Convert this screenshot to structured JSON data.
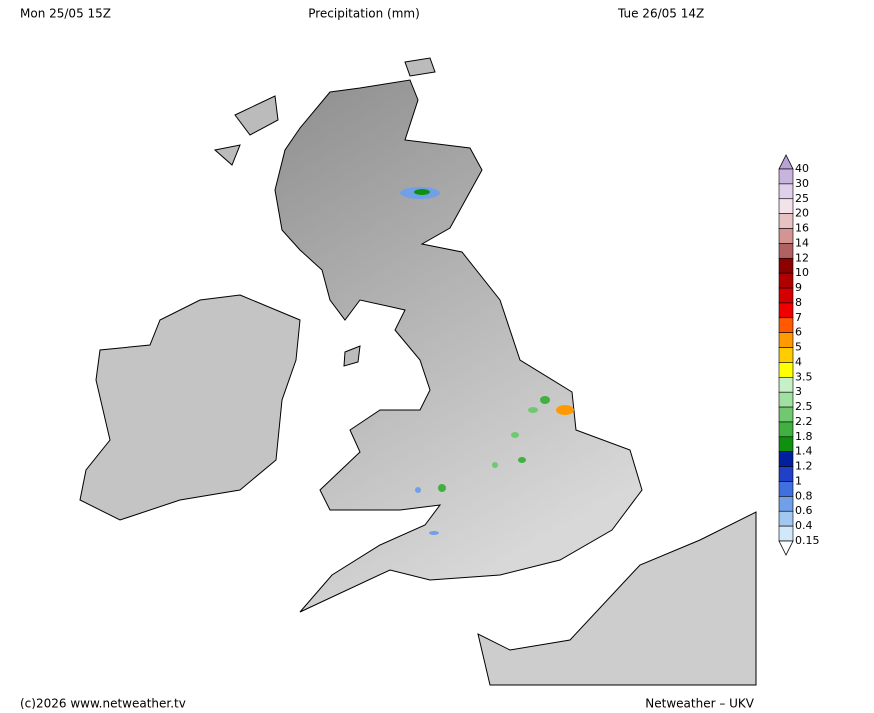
{
  "header": {
    "left": "Mon 25/05 15Z",
    "title": "Precipitation (mm)",
    "right": "Tue 26/05 14Z"
  },
  "footer": {
    "left": "(c)2026 www.netweather.tv",
    "right": "Netweather – UKV"
  },
  "legend": {
    "levels": [
      40,
      30,
      25,
      20,
      16,
      14,
      12,
      10,
      9,
      8,
      7,
      6,
      5,
      4,
      3.5,
      3,
      2.5,
      2.2,
      1.8,
      1.4,
      1.2,
      1,
      0.8,
      0.6,
      0.4,
      0.15
    ],
    "segment_colors": [
      "#c8b4dc",
      "#e0d0ea",
      "#f4e2ea",
      "#e8c2c2",
      "#d49494",
      "#b06262",
      "#8b0000",
      "#b00000",
      "#d40000",
      "#f00000",
      "#ff5a00",
      "#ff9a00",
      "#ffcc00",
      "#ffff00",
      "#c8f0c8",
      "#a0e0a0",
      "#70c870",
      "#40b040",
      "#109010",
      "#0020a0",
      "#2040c8",
      "#4070e0",
      "#70a0e8",
      "#a0c8f0",
      "#d0e8f8"
    ]
  }
}
